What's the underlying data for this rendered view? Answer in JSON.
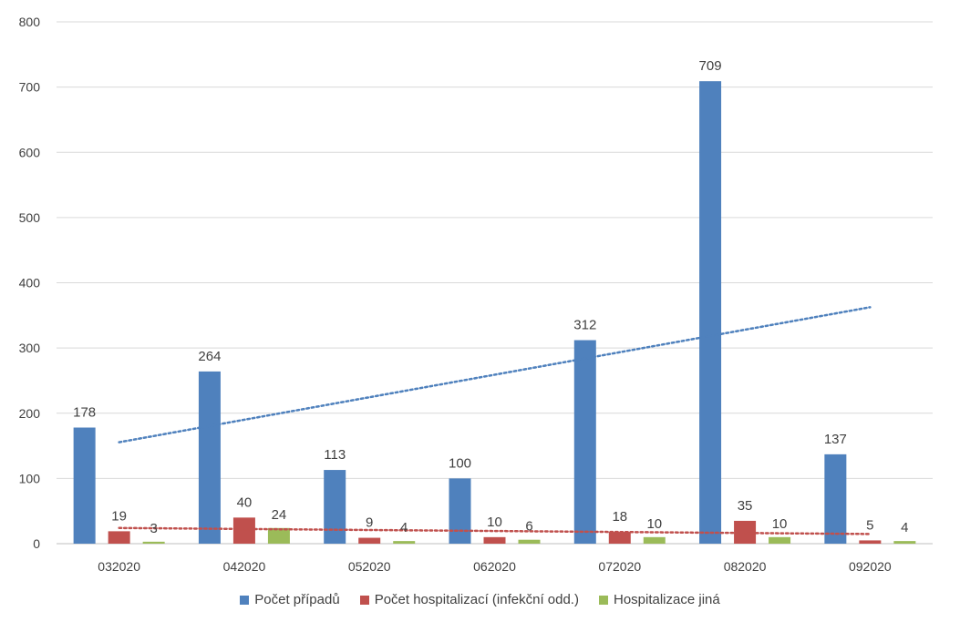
{
  "chart_data": {
    "type": "bar",
    "categories": [
      "032020",
      "042020",
      "052020",
      "062020",
      "072020",
      "082020",
      "092020"
    ],
    "series": [
      {
        "name": "Počet případů",
        "values": [
          178,
          264,
          113,
          100,
          312,
          709,
          137
        ],
        "color": "#4f81bd"
      },
      {
        "name": "Počet hospitalizací (infekční odd.)",
        "values": [
          19,
          40,
          9,
          10,
          18,
          35,
          5
        ],
        "color": "#c0504d"
      },
      {
        "name": "Hospitalizace jiná",
        "values": [
          3,
          24,
          4,
          6,
          10,
          10,
          4
        ],
        "color": "#9bbb59"
      }
    ],
    "trendlines": [
      {
        "series": "Počet případů",
        "style": "dotted",
        "color": "#4f81bd"
      },
      {
        "series": "Počet hospitalizací (infekční odd.)",
        "style": "dotted",
        "color": "#c0504d"
      }
    ],
    "ylim": [
      0,
      800
    ],
    "yticks": [
      0,
      100,
      200,
      300,
      400,
      500,
      600,
      700,
      800
    ],
    "grid": true,
    "legend": "bottom",
    "data_labels": true
  }
}
